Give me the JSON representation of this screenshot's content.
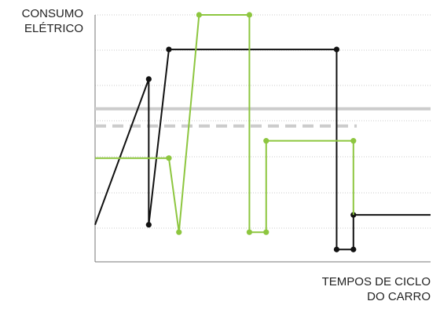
{
  "chart_data": {
    "type": "line",
    "ylabel_line1": "CONSUMO",
    "ylabel_line2": "ELÉTRICO",
    "xlabel_line1": "TEMPOS DE CICLO",
    "xlabel_line2": "DO CARRO",
    "xlim": [
      0,
      100
    ],
    "ylim": [
      0,
      100
    ],
    "grid": true,
    "colors": {
      "black_series": "#111111",
      "green_series": "#8dc63f",
      "reference_solid": "#cccccc",
      "reference_dashed": "#cccccc",
      "grid": "#bbbbbb"
    },
    "reference_lines": [
      {
        "style": "solid",
        "y": 62,
        "x": [
          0,
          100
        ]
      },
      {
        "style": "dashed",
        "y": 55,
        "x": [
          0,
          78
        ]
      }
    ],
    "series": [
      {
        "key": "black",
        "points": [
          {
            "x": 0,
            "y": 15,
            "marker": false
          },
          {
            "x": 16,
            "y": 74,
            "marker": true
          },
          {
            "x": 16,
            "y": 15,
            "marker": true
          },
          {
            "x": 22,
            "y": 86,
            "marker": true
          },
          {
            "x": 72,
            "y": 86,
            "marker": true
          },
          {
            "x": 72,
            "y": 5,
            "marker": true
          },
          {
            "x": 77,
            "y": 5,
            "marker": true
          },
          {
            "x": 77,
            "y": 19,
            "marker": true
          },
          {
            "x": 100,
            "y": 19,
            "marker": false
          }
        ]
      },
      {
        "key": "green",
        "points": [
          {
            "x": 0,
            "y": 42,
            "marker": false
          },
          {
            "x": 22,
            "y": 42,
            "marker": true
          },
          {
            "x": 25,
            "y": 12,
            "marker": true
          },
          {
            "x": 31,
            "y": 100,
            "marker": true
          },
          {
            "x": 46,
            "y": 100,
            "marker": true
          },
          {
            "x": 46,
            "y": 12,
            "marker": true
          },
          {
            "x": 51,
            "y": 12,
            "marker": true
          },
          {
            "x": 51,
            "y": 49,
            "marker": true
          },
          {
            "x": 77,
            "y": 49,
            "marker": true
          },
          {
            "x": 77,
            "y": 19,
            "marker": false
          }
        ]
      }
    ]
  }
}
